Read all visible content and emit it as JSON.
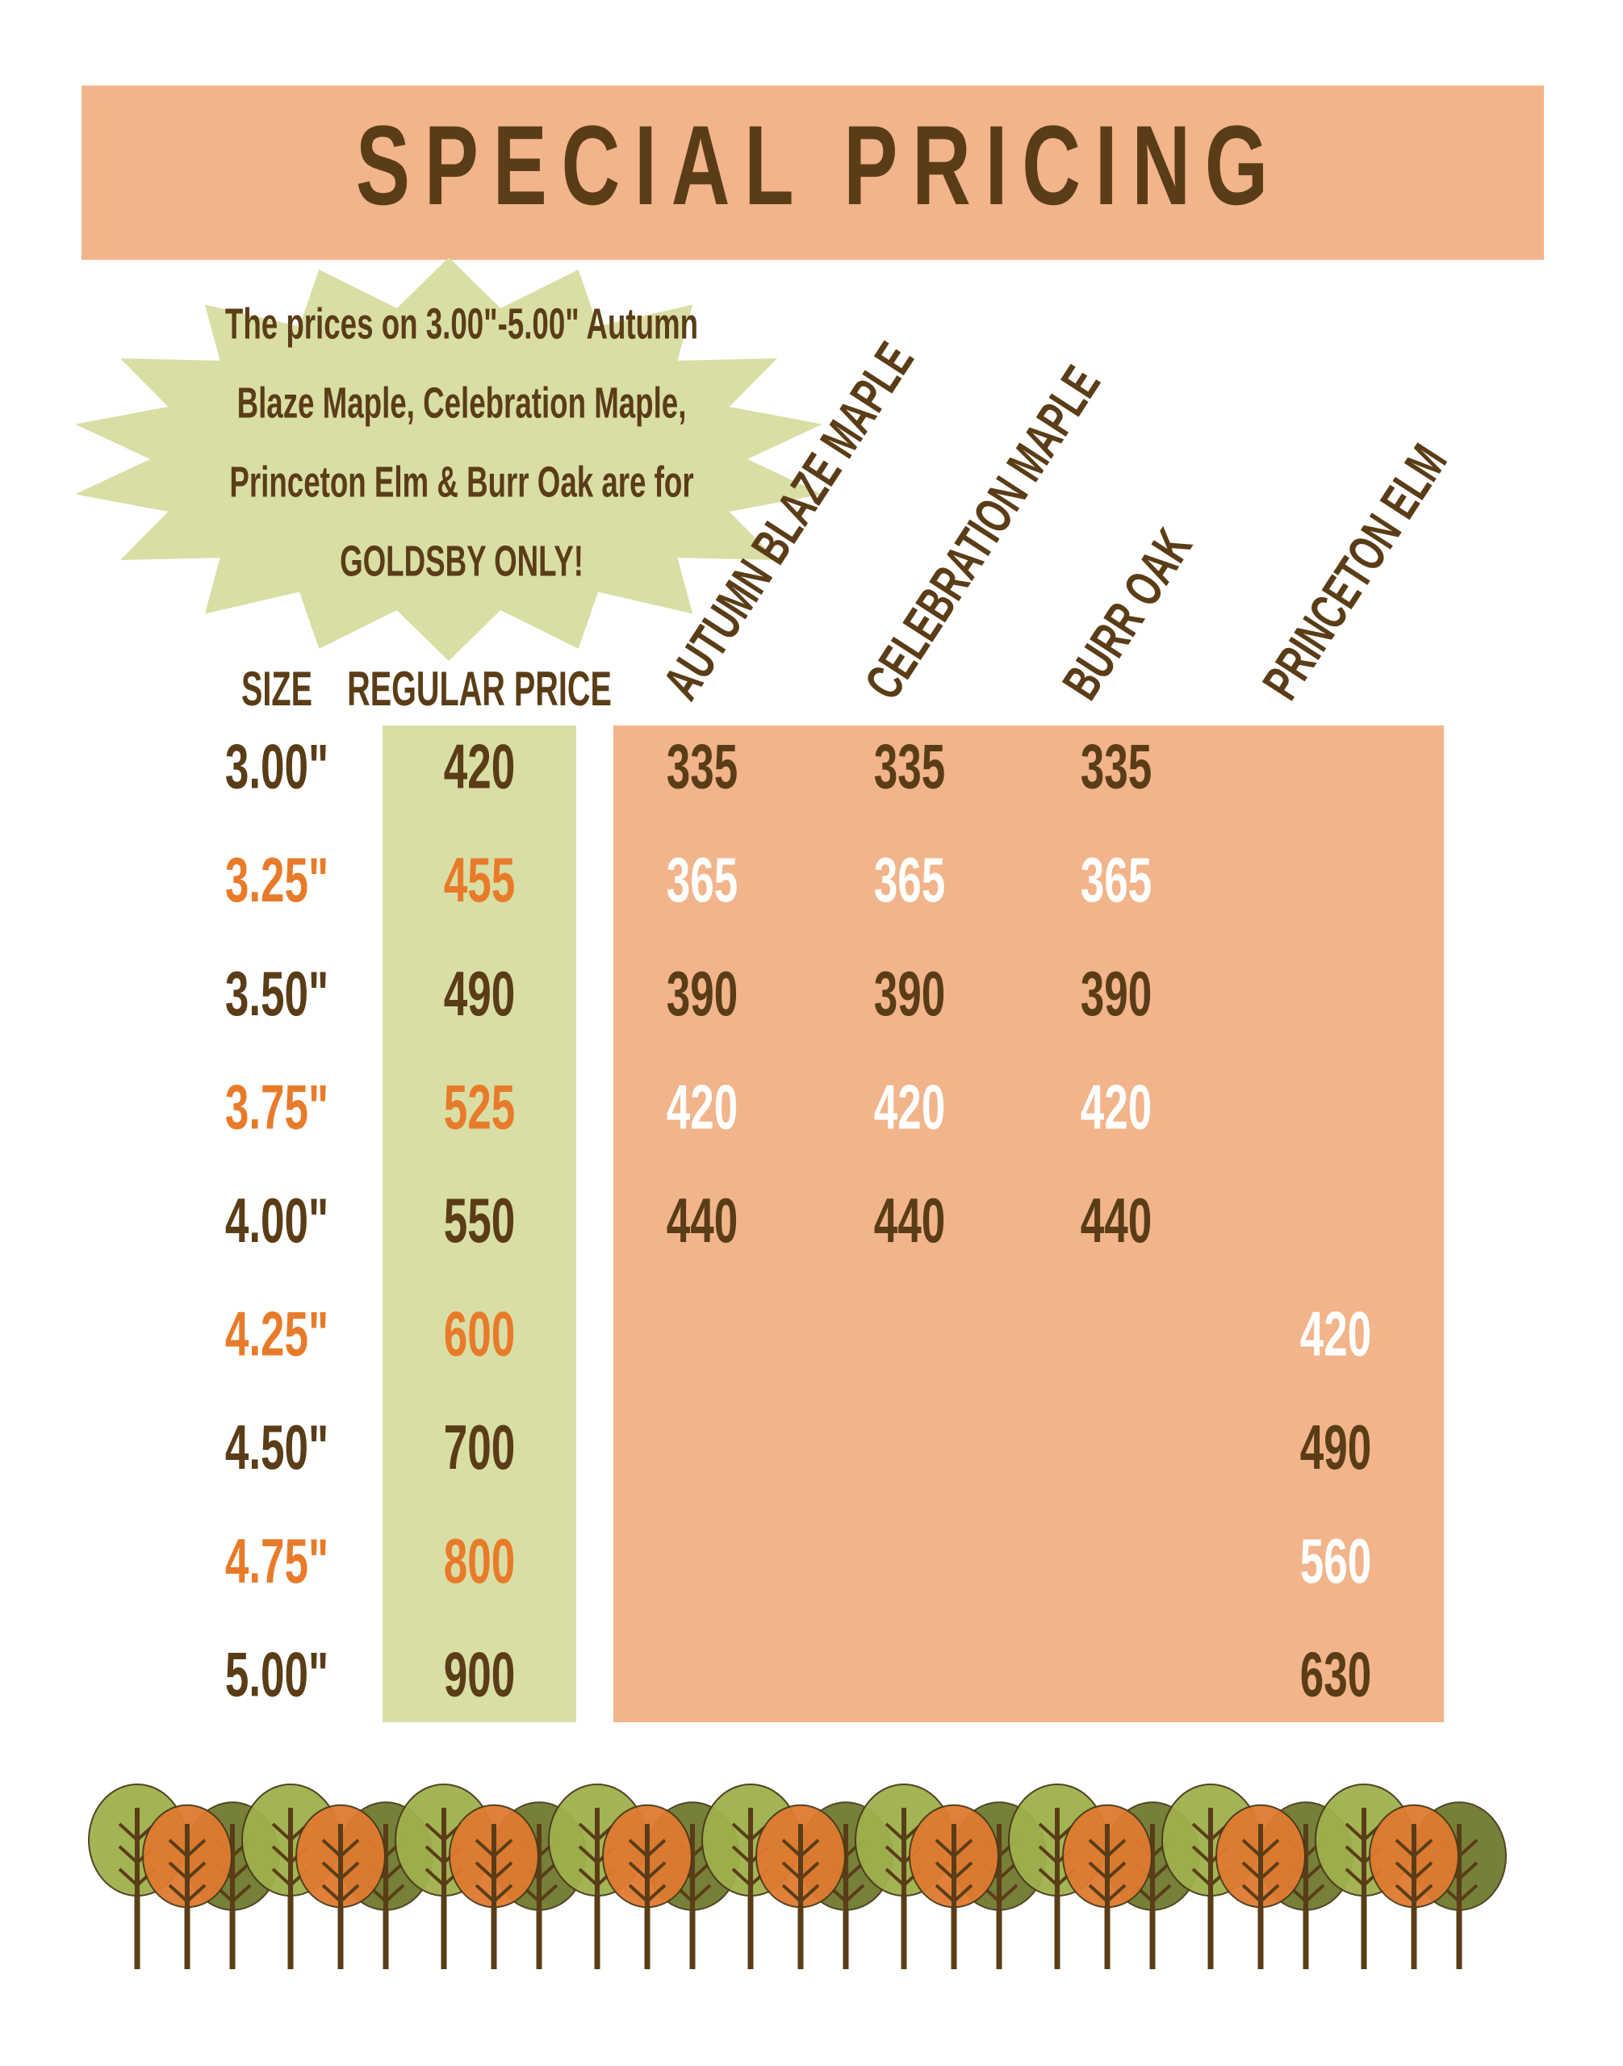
{
  "header": {
    "title": "SPECIAL PRICING"
  },
  "note": {
    "lines": [
      "The prices on 3.00\"-5.00\" Autumn",
      "Blaze Maple, Celebration Maple,",
      "Princeton Elm & Burr Oak are for",
      "GOLDSBY ONLY!"
    ]
  },
  "table": {
    "columns": [
      "SIZE",
      "REGULAR PRICE",
      "AUTUMN BLAZE MAPLE",
      "CELEBRATION MAPLE",
      "BURR OAK",
      "PRINCETON ELM"
    ],
    "rows": [
      [
        "3.00\"",
        420,
        335,
        335,
        335,
        null
      ],
      [
        "3.25\"",
        455,
        365,
        365,
        365,
        null
      ],
      [
        "3.50\"",
        490,
        390,
        390,
        390,
        null
      ],
      [
        "3.75\"",
        525,
        420,
        420,
        420,
        null
      ],
      [
        "4.00\"",
        550,
        440,
        440,
        440,
        null
      ],
      [
        "4.25\"",
        600,
        null,
        null,
        null,
        420
      ],
      [
        "4.50\"",
        700,
        null,
        null,
        null,
        490
      ],
      [
        "4.75\"",
        800,
        null,
        null,
        null,
        560
      ],
      [
        "5.00\"",
        900,
        null,
        null,
        null,
        630
      ]
    ]
  }
}
